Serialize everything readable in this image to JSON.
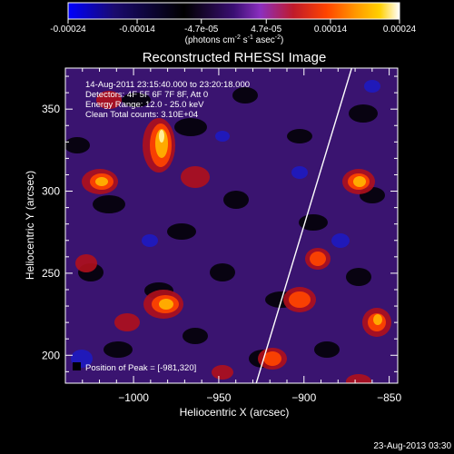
{
  "colorbar": {
    "tick_labels": [
      "-0.00024",
      "-0.00014",
      "-4.7e-05",
      "4.7e-05",
      "0.00014",
      "0.00024"
    ],
    "tick_values": [
      -0.00024,
      -0.00014,
      -4.7e-05,
      4.7e-05,
      0.00014,
      0.00024
    ],
    "range": [
      -0.00024,
      0.00024
    ],
    "units_prefix": "(photons cm",
    "units_exp1": "-2",
    "units_mid": " s",
    "units_exp2": "-1",
    "units_mid2": " asec",
    "units_exp3": "-2",
    "units_suffix": ")",
    "stops": [
      "#0000ff",
      "#1a0a6e",
      "#000000",
      "#3a0e73",
      "#8b2fbf",
      "#c01a2a",
      "#ff4400",
      "#ff9a00",
      "#ffd000",
      "#ffffff"
    ]
  },
  "chart_data": {
    "type": "heatmap",
    "title": "Reconstructed RHESSI Image",
    "xlabel": "Heliocentric X (arcsec)",
    "ylabel": "Heliocentric Y (arcsec)",
    "xlim": [
      -1040,
      -845
    ],
    "ylim": [
      183,
      375
    ],
    "xticks": [
      -1000,
      -950,
      -900,
      -850
    ],
    "xtick_labels": [
      "−1000",
      "−950",
      "−900",
      "−850"
    ],
    "yticks": [
      200,
      250,
      300,
      350
    ],
    "ytick_labels": [
      "200",
      "250",
      "300",
      "350"
    ],
    "limb_line": [
      [
        -928,
        183
      ],
      [
        -872,
        375
      ]
    ],
    "peak": [
      -981,
      320
    ],
    "annotations": [
      "14-Aug-2011 23:15:40.000 to 23:20:18.000",
      "Detectors: 4F 5F 6F 7F 8F, Att 0",
      "Energy Range: 12.0 - 25.0 keV",
      "Clean    Total counts: 3.10E+04"
    ],
    "peak_label": "Position of Peak = [-981,320]"
  },
  "footer_timestamp": "23-Aug-2013 03:30"
}
